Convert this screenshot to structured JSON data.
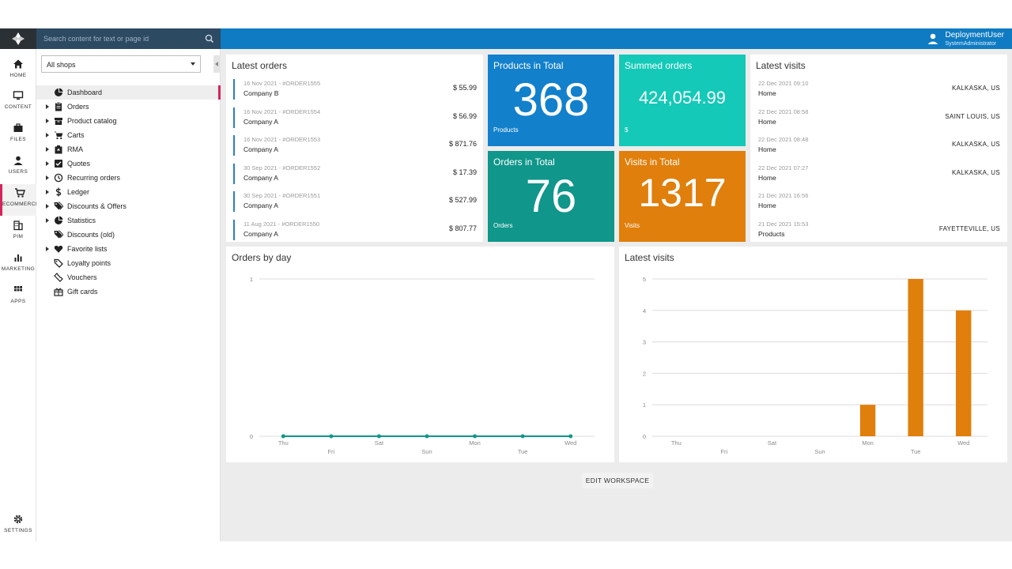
{
  "header": {
    "search_placeholder": "Search content for text or page id",
    "user_name": "DeploymentUser",
    "user_role": "SystemAdministrator"
  },
  "rail": {
    "items": [
      {
        "label": "HOME",
        "icon": "home-icon"
      },
      {
        "label": "CONTENT",
        "icon": "monitor-icon"
      },
      {
        "label": "FILES",
        "icon": "briefcase-icon"
      },
      {
        "label": "USERS",
        "icon": "user-icon"
      },
      {
        "label": "ECOMMERCE",
        "icon": "cart-icon"
      },
      {
        "label": "PIM",
        "icon": "building-icon"
      },
      {
        "label": "MARKETING",
        "icon": "bar-chart-icon"
      },
      {
        "label": "APPS",
        "icon": "grid-icon"
      }
    ],
    "settings_label": "SETTINGS"
  },
  "tree": {
    "shop_selected": "All shops",
    "nodes": [
      {
        "label": "Dashboard",
        "icon": "pie-chart-icon",
        "expandable": false
      },
      {
        "label": "Orders",
        "icon": "clipboard-icon",
        "expandable": true
      },
      {
        "label": "Product catalog",
        "icon": "box-icon",
        "expandable": true
      },
      {
        "label": "Carts",
        "icon": "cart-icon",
        "expandable": true
      },
      {
        "label": "RMA",
        "icon": "rma-icon",
        "expandable": true
      },
      {
        "label": "Quotes",
        "icon": "checkbox-icon",
        "expandable": true
      },
      {
        "label": "Recurring orders",
        "icon": "clock-icon",
        "expandable": true
      },
      {
        "label": "Ledger",
        "icon": "dollar-icon",
        "expandable": true
      },
      {
        "label": "Discounts & Offers",
        "icon": "tags-icon",
        "expandable": true
      },
      {
        "label": "Statistics",
        "icon": "pie-chart-icon",
        "expandable": true
      },
      {
        "label": "Discounts (old)",
        "icon": "tags-icon",
        "expandable": false
      },
      {
        "label": "Favorite lists",
        "icon": "heart-icon",
        "expandable": true
      },
      {
        "label": "Loyalty points",
        "icon": "tag-icon",
        "expandable": false
      },
      {
        "label": "Vouchers",
        "icon": "ticket-icon",
        "expandable": false
      },
      {
        "label": "Gift cards",
        "icon": "gift-icon",
        "expandable": false
      }
    ]
  },
  "latest_orders": {
    "title": "Latest orders",
    "rows": [
      {
        "meta": "16 Nov 2021 - #ORDER1555",
        "company": "Company B",
        "amount": "$ 55.99"
      },
      {
        "meta": "16 Nov 2021 - #ORDER1554",
        "company": "Company A",
        "amount": "$ 56.99"
      },
      {
        "meta": "16 Nov 2021 - #ORDER1553",
        "company": "Company A",
        "amount": "$ 871.76"
      },
      {
        "meta": "30 Sep 2021 - #ORDER1552",
        "company": "Company A",
        "amount": "$ 17.39"
      },
      {
        "meta": "30 Sep 2021 - #ORDER1551",
        "company": "Company A",
        "amount": "$ 527.99"
      },
      {
        "meta": "11 Aug 2021 - #ORDER1550",
        "company": "Company A",
        "amount": "$ 807.77"
      }
    ]
  },
  "tiles": {
    "products": {
      "title": "Products in Total",
      "value": "368",
      "unit": "Products",
      "color": "#1380cc"
    },
    "summed": {
      "title": "Summed orders",
      "value": "424,054.99",
      "unit": "$",
      "color": "#14c9b7"
    },
    "orders": {
      "title": "Orders in Total",
      "value": "76",
      "unit": "Orders",
      "color": "#10968a"
    },
    "visits": {
      "title": "Visits in Total",
      "value": "1317",
      "unit": "Visits",
      "color": "#e07f0c"
    }
  },
  "latest_visits": {
    "title": "Latest visits",
    "rows": [
      {
        "time": "22 Dec 2021 09:10",
        "page": "Home",
        "location": "KALKASKA, US"
      },
      {
        "time": "22 Dec 2021 08:58",
        "page": "Home",
        "location": "SAINT LOUIS, US"
      },
      {
        "time": "22 Dec 2021 08:48",
        "page": "Home",
        "location": "KALKASKA, US"
      },
      {
        "time": "22 Dec 2021 07:27",
        "page": "Home",
        "location": "KALKASKA, US"
      },
      {
        "time": "21 Dec 2021 16:56",
        "page": "Home",
        "location": ""
      },
      {
        "time": "21 Dec 2021 15:53",
        "page": "Products",
        "location": "FAYETTEVILLE, US"
      }
    ]
  },
  "chart_data": [
    {
      "type": "line",
      "title": "Orders by day",
      "categories": [
        "Thu",
        "Fri",
        "Sat",
        "Sun",
        "Mon",
        "Tue",
        "Wed"
      ],
      "values": [
        0,
        0,
        0,
        0,
        0,
        0,
        0
      ],
      "ylim": [
        0,
        1
      ],
      "yticks": [
        0,
        1
      ],
      "color": "#10968a",
      "grid": true
    },
    {
      "type": "bar",
      "title": "Latest visits",
      "categories": [
        "Thu",
        "Fri",
        "Sat",
        "Sun",
        "Mon",
        "Tue",
        "Wed"
      ],
      "values": [
        0,
        0,
        0,
        0,
        1,
        5,
        4
      ],
      "ylim": [
        0,
        5
      ],
      "yticks": [
        0,
        1,
        2,
        3,
        4,
        5
      ],
      "color": "#e07f0c",
      "grid": true
    }
  ],
  "footer": {
    "edit_label": "EDIT WORKSPACE"
  }
}
